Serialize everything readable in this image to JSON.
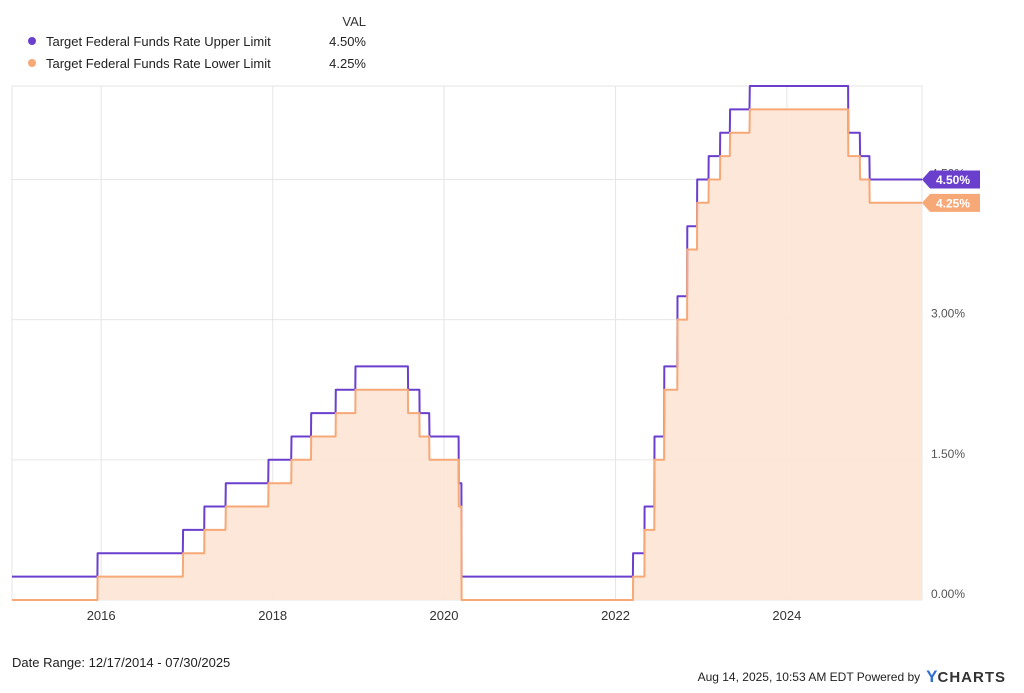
{
  "legend": {
    "header": "VAL",
    "items": [
      {
        "name": "Target Federal Funds Rate Upper Limit",
        "value": "4.50%",
        "color": "#6a3fce"
      },
      {
        "name": "Target Federal Funds Rate Lower Limit",
        "value": "4.25%",
        "color": "#f7a877"
      }
    ]
  },
  "chart_data": {
    "type": "area",
    "x_axis": {
      "type": "date",
      "range": [
        "2014-12-17",
        "2025-07-30"
      ],
      "tick_labels": [
        "2016",
        "2018",
        "2020",
        "2022",
        "2024"
      ]
    },
    "y_axis": {
      "position": "right",
      "range": [
        0,
        5.5
      ],
      "tick_labels": [
        "0.00%",
        "1.50%",
        "3.00%",
        "4.50%"
      ],
      "tick_values": [
        0,
        1.5,
        3.0,
        4.5
      ]
    },
    "grid": true,
    "series": [
      {
        "name": "Target Federal Funds Rate Upper Limit",
        "color": "#6a3fce",
        "fill": false,
        "end_label": "4.50%",
        "points": [
          [
            "2014-12-17",
            0.25
          ],
          [
            "2015-12-16",
            0.25
          ],
          [
            "2015-12-17",
            0.5
          ],
          [
            "2016-12-14",
            0.5
          ],
          [
            "2016-12-15",
            0.75
          ],
          [
            "2017-03-15",
            0.75
          ],
          [
            "2017-03-16",
            1.0
          ],
          [
            "2017-06-14",
            1.0
          ],
          [
            "2017-06-15",
            1.25
          ],
          [
            "2017-12-13",
            1.25
          ],
          [
            "2017-12-14",
            1.5
          ],
          [
            "2018-03-21",
            1.5
          ],
          [
            "2018-03-22",
            1.75
          ],
          [
            "2018-06-13",
            1.75
          ],
          [
            "2018-06-14",
            2.0
          ],
          [
            "2018-09-26",
            2.0
          ],
          [
            "2018-09-27",
            2.25
          ],
          [
            "2018-12-19",
            2.25
          ],
          [
            "2018-12-20",
            2.5
          ],
          [
            "2019-07-31",
            2.5
          ],
          [
            "2019-08-01",
            2.25
          ],
          [
            "2019-09-18",
            2.25
          ],
          [
            "2019-09-19",
            2.0
          ],
          [
            "2019-10-30",
            2.0
          ],
          [
            "2019-10-31",
            1.75
          ],
          [
            "2020-03-03",
            1.75
          ],
          [
            "2020-03-04",
            1.25
          ],
          [
            "2020-03-15",
            1.25
          ],
          [
            "2020-03-16",
            0.25
          ],
          [
            "2022-03-16",
            0.25
          ],
          [
            "2022-03-17",
            0.5
          ],
          [
            "2022-05-04",
            0.5
          ],
          [
            "2022-05-05",
            1.0
          ],
          [
            "2022-06-15",
            1.0
          ],
          [
            "2022-06-16",
            1.75
          ],
          [
            "2022-07-27",
            1.75
          ],
          [
            "2022-07-28",
            2.5
          ],
          [
            "2022-09-21",
            2.5
          ],
          [
            "2022-09-22",
            3.25
          ],
          [
            "2022-11-02",
            3.25
          ],
          [
            "2022-11-03",
            4.0
          ],
          [
            "2022-12-14",
            4.0
          ],
          [
            "2022-12-15",
            4.5
          ],
          [
            "2023-02-01",
            4.5
          ],
          [
            "2023-02-02",
            4.75
          ],
          [
            "2023-03-22",
            4.75
          ],
          [
            "2023-03-23",
            5.0
          ],
          [
            "2023-05-03",
            5.0
          ],
          [
            "2023-05-04",
            5.25
          ],
          [
            "2023-07-26",
            5.25
          ],
          [
            "2023-07-27",
            5.5
          ],
          [
            "2024-09-18",
            5.5
          ],
          [
            "2024-09-19",
            5.0
          ],
          [
            "2024-11-07",
            5.0
          ],
          [
            "2024-11-08",
            4.75
          ],
          [
            "2024-12-18",
            4.75
          ],
          [
            "2024-12-19",
            4.5
          ],
          [
            "2025-07-30",
            4.5
          ]
        ]
      },
      {
        "name": "Target Federal Funds Rate Lower Limit",
        "color": "#f7a877",
        "fill": true,
        "end_label": "4.25%",
        "points": [
          [
            "2014-12-17",
            0.0
          ],
          [
            "2015-12-16",
            0.0
          ],
          [
            "2015-12-17",
            0.25
          ],
          [
            "2016-12-14",
            0.25
          ],
          [
            "2016-12-15",
            0.5
          ],
          [
            "2017-03-15",
            0.5
          ],
          [
            "2017-03-16",
            0.75
          ],
          [
            "2017-06-14",
            0.75
          ],
          [
            "2017-06-15",
            1.0
          ],
          [
            "2017-12-13",
            1.0
          ],
          [
            "2017-12-14",
            1.25
          ],
          [
            "2018-03-21",
            1.25
          ],
          [
            "2018-03-22",
            1.5
          ],
          [
            "2018-06-13",
            1.5
          ],
          [
            "2018-06-14",
            1.75
          ],
          [
            "2018-09-26",
            1.75
          ],
          [
            "2018-09-27",
            2.0
          ],
          [
            "2018-12-19",
            2.0
          ],
          [
            "2018-12-20",
            2.25
          ],
          [
            "2019-07-31",
            2.25
          ],
          [
            "2019-08-01",
            2.0
          ],
          [
            "2019-09-18",
            2.0
          ],
          [
            "2019-09-19",
            1.75
          ],
          [
            "2019-10-30",
            1.75
          ],
          [
            "2019-10-31",
            1.5
          ],
          [
            "2020-03-03",
            1.5
          ],
          [
            "2020-03-04",
            1.0
          ],
          [
            "2020-03-15",
            1.0
          ],
          [
            "2020-03-16",
            0.0
          ],
          [
            "2022-03-16",
            0.0
          ],
          [
            "2022-03-17",
            0.25
          ],
          [
            "2022-05-04",
            0.25
          ],
          [
            "2022-05-05",
            0.75
          ],
          [
            "2022-06-15",
            0.75
          ],
          [
            "2022-06-16",
            1.5
          ],
          [
            "2022-07-27",
            1.5
          ],
          [
            "2022-07-28",
            2.25
          ],
          [
            "2022-09-21",
            2.25
          ],
          [
            "2022-09-22",
            3.0
          ],
          [
            "2022-11-02",
            3.0
          ],
          [
            "2022-11-03",
            3.75
          ],
          [
            "2022-12-14",
            3.75
          ],
          [
            "2022-12-15",
            4.25
          ],
          [
            "2023-02-01",
            4.25
          ],
          [
            "2023-02-02",
            4.5
          ],
          [
            "2023-03-22",
            4.5
          ],
          [
            "2023-03-23",
            4.75
          ],
          [
            "2023-05-03",
            4.75
          ],
          [
            "2023-05-04",
            5.0
          ],
          [
            "2023-07-26",
            5.0
          ],
          [
            "2023-07-27",
            5.25
          ],
          [
            "2024-09-18",
            5.25
          ],
          [
            "2024-09-19",
            4.75
          ],
          [
            "2024-11-07",
            4.75
          ],
          [
            "2024-11-08",
            4.5
          ],
          [
            "2024-12-18",
            4.5
          ],
          [
            "2024-12-19",
            4.25
          ],
          [
            "2025-07-30",
            4.25
          ]
        ]
      }
    ]
  },
  "footer": {
    "date_range": "Date Range: 12/17/2014 - 07/30/2025",
    "timestamp": "Aug 14, 2025, 10:53 AM EDT Powered by",
    "brand_y": "Y",
    "brand_rest": "CHARTS"
  }
}
